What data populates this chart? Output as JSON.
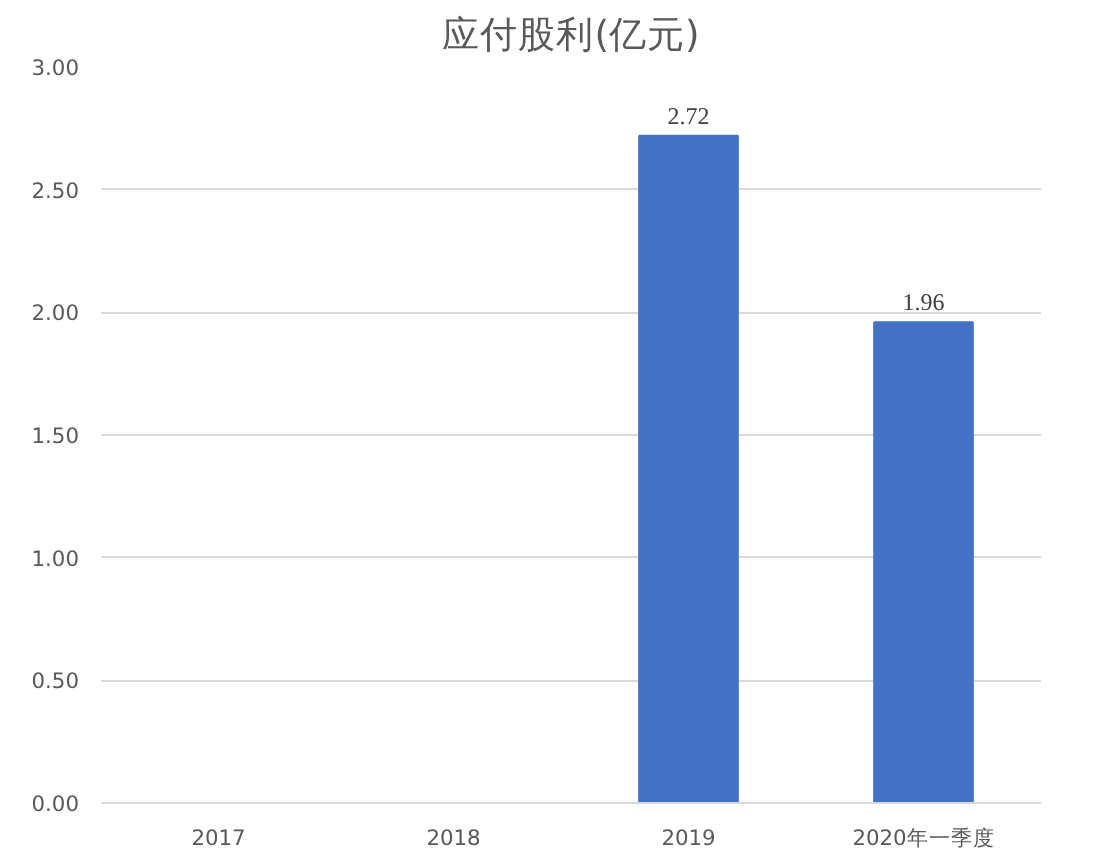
{
  "chart_data": {
    "type": "bar",
    "title": "应付股利(亿元)",
    "categories": [
      "2017",
      "2018",
      "2019",
      "2020年一季度"
    ],
    "values": [
      null,
      null,
      2.72,
      1.96
    ],
    "color": "#4472c4",
    "data_labels": true,
    "ylim": [
      0,
      3
    ],
    "yticks": [
      {
        "value": 0,
        "label": "0.00"
      },
      {
        "value": 0.5,
        "label": "0.50"
      },
      {
        "value": 1,
        "label": "1.00"
      },
      {
        "value": 1.5,
        "label": "1.50"
      },
      {
        "value": 2,
        "label": "2.00"
      },
      {
        "value": 2.5,
        "label": "2.50"
      },
      {
        "value": 3,
        "label": "3.00"
      }
    ],
    "grid": "y"
  }
}
